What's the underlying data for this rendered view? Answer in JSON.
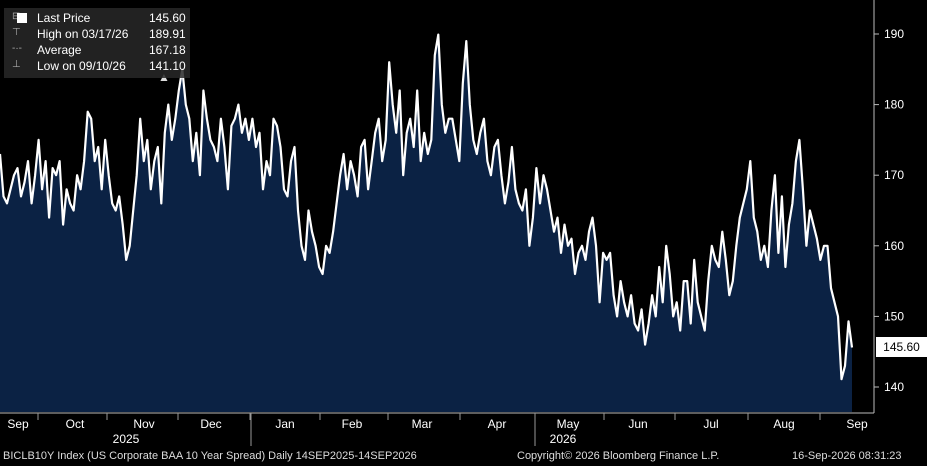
{
  "legend": {
    "last": {
      "label": "Last Price",
      "value": "145.60"
    },
    "high": {
      "label": "High on 03/17/26",
      "value": "189.91"
    },
    "avg": {
      "label": "Average",
      "value": "167.18"
    },
    "low": {
      "label": "Low on 09/10/26",
      "value": "141.10"
    }
  },
  "last_tag": "145.60",
  "footer": {
    "left": "BICLB10Y Index (US Corporate BAA 10 Year Spread) Daily 14SEP2025-14SEP2026",
    "center": "Copyright© 2026 Bloomberg Finance L.P.",
    "right": "16-Sep-2026 08:31:23"
  },
  "colors": {
    "line": "#ffffff",
    "fill": "#0b2244",
    "background": "#000000",
    "grid": "#555555"
  },
  "chart_data": {
    "type": "area",
    "ylim": [
      137,
      193
    ],
    "yticks": [
      140,
      150,
      160,
      170,
      180,
      190
    ],
    "grid": false,
    "months": [
      "Sep",
      "Oct",
      "Nov",
      "Dec",
      "Jan",
      "Feb",
      "Mar",
      "Apr",
      "May",
      "Jun",
      "Jul",
      "Aug",
      "Sep"
    ],
    "years": [
      "2025",
      "2026"
    ],
    "x_range": [
      "2025-09-14",
      "2026-09-14"
    ],
    "series": [
      {
        "values": [
          173,
          167,
          166,
          168,
          170,
          171,
          167,
          169,
          172,
          166,
          170,
          175,
          168,
          172,
          164,
          171,
          170,
          172,
          163,
          168,
          166,
          165,
          170,
          168,
          172,
          179,
          178,
          172,
          174,
          168,
          175,
          170,
          166,
          165,
          167,
          163,
          158,
          160,
          165,
          170,
          178,
          172,
          175,
          168,
          172,
          174,
          166,
          176,
          180,
          175,
          178,
          182,
          185,
          180,
          178,
          172,
          176,
          170,
          182,
          178,
          175,
          174,
          172,
          178,
          174,
          168,
          177,
          178,
          180,
          176,
          178,
          175,
          178,
          174,
          176,
          168,
          172,
          170,
          178,
          177,
          174,
          168,
          167,
          172,
          174,
          165,
          160,
          158,
          165,
          162,
          160,
          157,
          156,
          160,
          159,
          162,
          166,
          170,
          173,
          168,
          172,
          170,
          167,
          174,
          175,
          168,
          172,
          176,
          178,
          172,
          175,
          186,
          180,
          176,
          182,
          170,
          176,
          178,
          174,
          182,
          172,
          176,
          173,
          175,
          187,
          189.91,
          180,
          176,
          178,
          178,
          175,
          172,
          183,
          189,
          180,
          175,
          173,
          176,
          178,
          172,
          170,
          174,
          175,
          170,
          166,
          169,
          174,
          168,
          166,
          165,
          168,
          160,
          164,
          171,
          166,
          170,
          168,
          165,
          162,
          164,
          159,
          163,
          160,
          161,
          156,
          159,
          160,
          158,
          162,
          164,
          160,
          152,
          159,
          158,
          159,
          153,
          150,
          155,
          152,
          150,
          153,
          149,
          148,
          151,
          146,
          149,
          153,
          150,
          157,
          152,
          160,
          156,
          150,
          152,
          148,
          155,
          155,
          149,
          158,
          152,
          150,
          148,
          155,
          160,
          158,
          157,
          162,
          158,
          153,
          155,
          160,
          164,
          166,
          168,
          172,
          164,
          162,
          158,
          160,
          157,
          165,
          170,
          159,
          167,
          157,
          163,
          166,
          172,
          175,
          168,
          160,
          165,
          163,
          161,
          158,
          160,
          160,
          154,
          152,
          150,
          141.1,
          143,
          149.3,
          145.6
        ]
      }
    ]
  }
}
